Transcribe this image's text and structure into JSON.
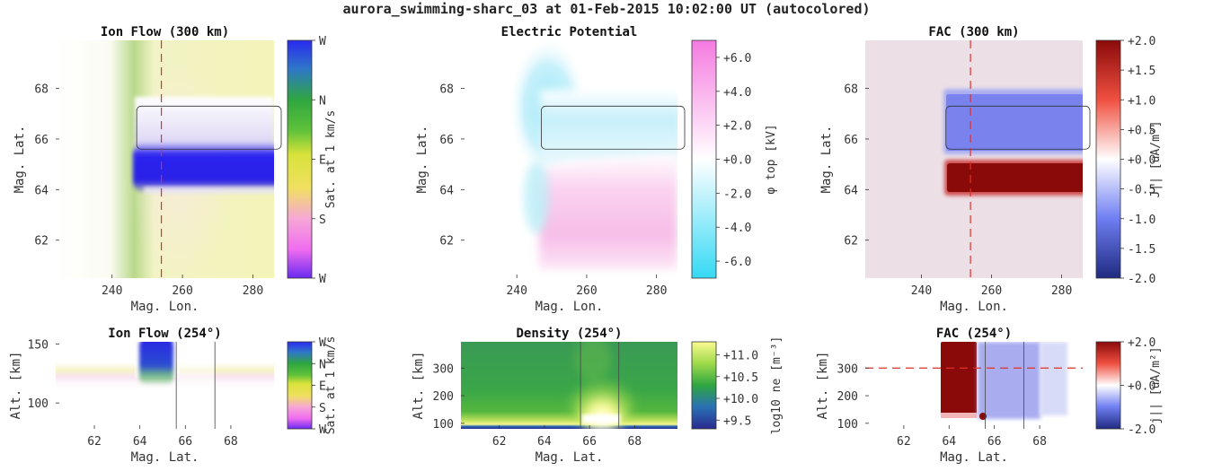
{
  "figure": {
    "title": "aurora_swimming-sharc_03 at 01-Feb-2015 10:02:00 UT (autocolored)"
  },
  "chart_data": [
    {
      "id": "ion_flow_top",
      "type": "heatmap",
      "title": "Ion Flow (300 km)",
      "xlabel": "Mag. Lon.",
      "ylabel": "Mag. Lat.",
      "xlim": [
        224,
        286
      ],
      "ylim": [
        60.5,
        69.9
      ],
      "xticks": [
        240,
        260,
        280
      ],
      "yticks": [
        62,
        64,
        66,
        68
      ],
      "cut_lon": 254,
      "arc_box": {
        "lon": [
          247,
          286
        ],
        "lat": [
          65.6,
          67.3
        ]
      },
      "colorbar": {
        "label": "Sat. at 1 km/s",
        "ticks": [
          "W",
          "N",
          "E",
          "S",
          "W"
        ],
        "colors": [
          "#2a2af0",
          "#2fa640",
          "#e8e34a",
          "#f06cf0",
          "#6a2af0"
        ]
      }
    },
    {
      "id": "potential_top",
      "type": "heatmap",
      "title": "Electric Potential",
      "xlabel": "Mag. Lon.",
      "ylabel": "Mag. Lat.",
      "xlim": [
        224,
        286
      ],
      "ylim": [
        60.5,
        69.9
      ],
      "xticks": [
        240,
        260,
        280
      ],
      "yticks": [
        62,
        64,
        66,
        68
      ],
      "arc_box": {
        "lon": [
          247,
          286
        ],
        "lat": [
          65.6,
          67.3
        ]
      },
      "colorbar": {
        "label": "φ top [kV]",
        "ticks": [
          "+6.0",
          "+4.0",
          "+2.0",
          "+0.0",
          "-2.0",
          "-4.0",
          "-6.0"
        ],
        "range": [
          -7,
          7
        ],
        "colors": [
          "#36d9f5",
          "#ffffff",
          "#f57ae0"
        ]
      }
    },
    {
      "id": "fac_top",
      "type": "heatmap",
      "title": "FAC (300 km)",
      "xlabel": "Mag. Lon.",
      "ylabel": "Mag. Lat.",
      "xlim": [
        224,
        286
      ],
      "ylim": [
        60.5,
        69.9
      ],
      "xticks": [
        240,
        260,
        280
      ],
      "yticks": [
        62,
        64,
        66,
        68
      ],
      "cut_lon": 254,
      "arc_box": {
        "lon": [
          247,
          286
        ],
        "lat": [
          65.6,
          67.3
        ]
      },
      "colorbar": {
        "label": "J|| [uA/m²]",
        "ticks": [
          "+2.0",
          "+1.5",
          "+1.0",
          "+0.5",
          "+0.0",
          "-0.5",
          "-1.0",
          "-1.5",
          "-2.0"
        ],
        "range": [
          -2,
          2
        ],
        "colors": [
          "#1f2a80",
          "#6f7ef2",
          "#ffffff",
          "#f05040",
          "#8a0a0a"
        ]
      }
    },
    {
      "id": "ion_flow_cut",
      "type": "heatmap",
      "title": "Ion Flow (254°)",
      "xlabel": "Mag. Lat.",
      "ylabel": "Alt. [km]",
      "xlim": [
        60.3,
        69.9
      ],
      "ylim": [
        78,
        152
      ],
      "xticks": [
        62,
        64,
        66,
        68
      ],
      "yticks": [
        100,
        150
      ],
      "arc_lats": [
        65.6,
        67.3
      ],
      "colorbar": {
        "label": "Sat. at 1 km/s",
        "ticks": [
          "W",
          "N",
          "E",
          "S",
          "W"
        ]
      }
    },
    {
      "id": "density_cut",
      "type": "heatmap",
      "title": "Density (254°)",
      "xlabel": "Mag. Lat.",
      "ylabel": "Alt. [km]",
      "xlim": [
        60.3,
        69.9
      ],
      "ylim": [
        80,
        395
      ],
      "xticks": [
        62,
        64,
        66,
        68
      ],
      "yticks": [
        100,
        200,
        300
      ],
      "arc_lats": [
        65.6,
        67.3
      ],
      "colorbar": {
        "label": "log10 ne [m⁻³]",
        "ticks": [
          "+11.0",
          "+10.5",
          "+10.0",
          "+9.5"
        ],
        "range": [
          9.3,
          11.3
        ],
        "colors": [
          "#2a2a8f",
          "#2a70b5",
          "#2fa640",
          "#9ed94a",
          "#fbfb90"
        ]
      }
    },
    {
      "id": "fac_cut",
      "type": "heatmap",
      "title": "FAC (254°)",
      "xlabel": "Mag. Lat.",
      "ylabel": "Alt. [km]",
      "xlim": [
        60.3,
        69.9
      ],
      "ylim": [
        80,
        395
      ],
      "xticks": [
        62,
        64,
        66,
        68
      ],
      "yticks": [
        100,
        200,
        300
      ],
      "arc_lats": [
        65.6,
        67.3
      ],
      "ref_alt": 300,
      "colorbar": {
        "label": "j|| [uA/m²]",
        "ticks": [
          "+2.0",
          "+0.0",
          "-2.0"
        ],
        "range": [
          -2,
          2
        ]
      }
    }
  ]
}
